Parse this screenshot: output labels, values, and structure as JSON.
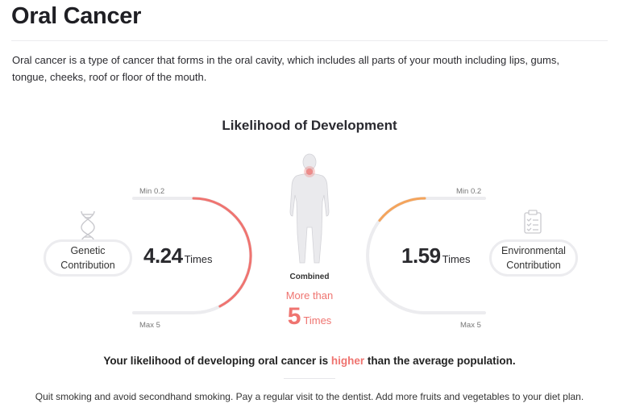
{
  "page": {
    "title": "Oral Cancer",
    "intro": "Oral cancer is a type of cancer that forms in the oral cavity, which includes all parts of your mouth including lips, gums, tongue, cheeks, roof or floor of the mouth."
  },
  "likelihood": {
    "heading": "Likelihood of Development",
    "genetic": {
      "label_line1": "Genetic",
      "label_line2": "Contribution",
      "value": "4.24",
      "unit": "Times",
      "min_label": "Min 0.2",
      "max_label": "Max 5",
      "level": 0.847,
      "icon": "dna-icon",
      "color": "#ef7470"
    },
    "environmental": {
      "label_line1": "Environmental",
      "label_line2": "Contribution",
      "value": "1.59",
      "unit": "Times",
      "min_label": "Min 0.2",
      "max_label": "Max 5",
      "level": 0.29,
      "icon": "clipboard-checklist-icon",
      "color": "#f4a45c"
    },
    "combined": {
      "label": "Combined",
      "more_than": "More than",
      "value": "5",
      "unit": "Times",
      "icon": "human-body-icon",
      "highlight_color": "#ef7470"
    }
  },
  "conclusion": {
    "before": "Your likelihood of developing oral cancer is ",
    "highlight": "higher",
    "after": " than the average population."
  },
  "advice": "Quit smoking and avoid secondhand smoking. Pay a regular visit to the dentist. Add more fruits and vegetables to your diet plan."
}
